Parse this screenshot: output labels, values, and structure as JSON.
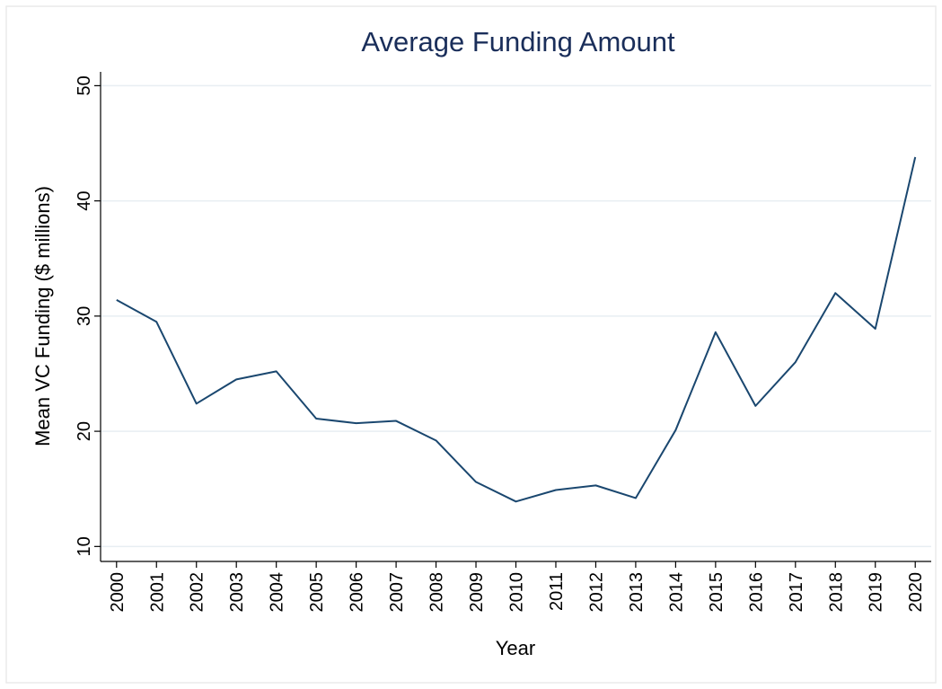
{
  "chart_data": {
    "type": "line",
    "title": "Average Funding Amount",
    "x_label": "Year",
    "y_label": "Mean VC Funding ($ millions)",
    "x": [
      2000,
      2001,
      2002,
      2003,
      2004,
      2005,
      2006,
      2007,
      2008,
      2009,
      2010,
      2011,
      2012,
      2013,
      2014,
      2015,
      2016,
      2017,
      2018,
      2019,
      2020
    ],
    "series": [
      {
        "name": "Mean VC Funding",
        "color": "#1a476f",
        "values": [
          31.4,
          29.5,
          22.4,
          24.5,
          25.2,
          21.1,
          20.7,
          20.9,
          19.2,
          15.6,
          13.9,
          14.9,
          15.3,
          14.2,
          20.1,
          28.6,
          22.2,
          26.0,
          32.0,
          28.9,
          43.8
        ]
      }
    ],
    "xlim": [
      1999.6,
      2020.4
    ],
    "xticks": [
      2000,
      2001,
      2002,
      2003,
      2004,
      2005,
      2006,
      2007,
      2008,
      2009,
      2010,
      2011,
      2012,
      2013,
      2014,
      2015,
      2016,
      2017,
      2018,
      2019,
      2020
    ],
    "ylim": [
      8.7,
      51.2
    ],
    "yticks": [
      10,
      20,
      30,
      40,
      50
    ],
    "grid": true
  }
}
